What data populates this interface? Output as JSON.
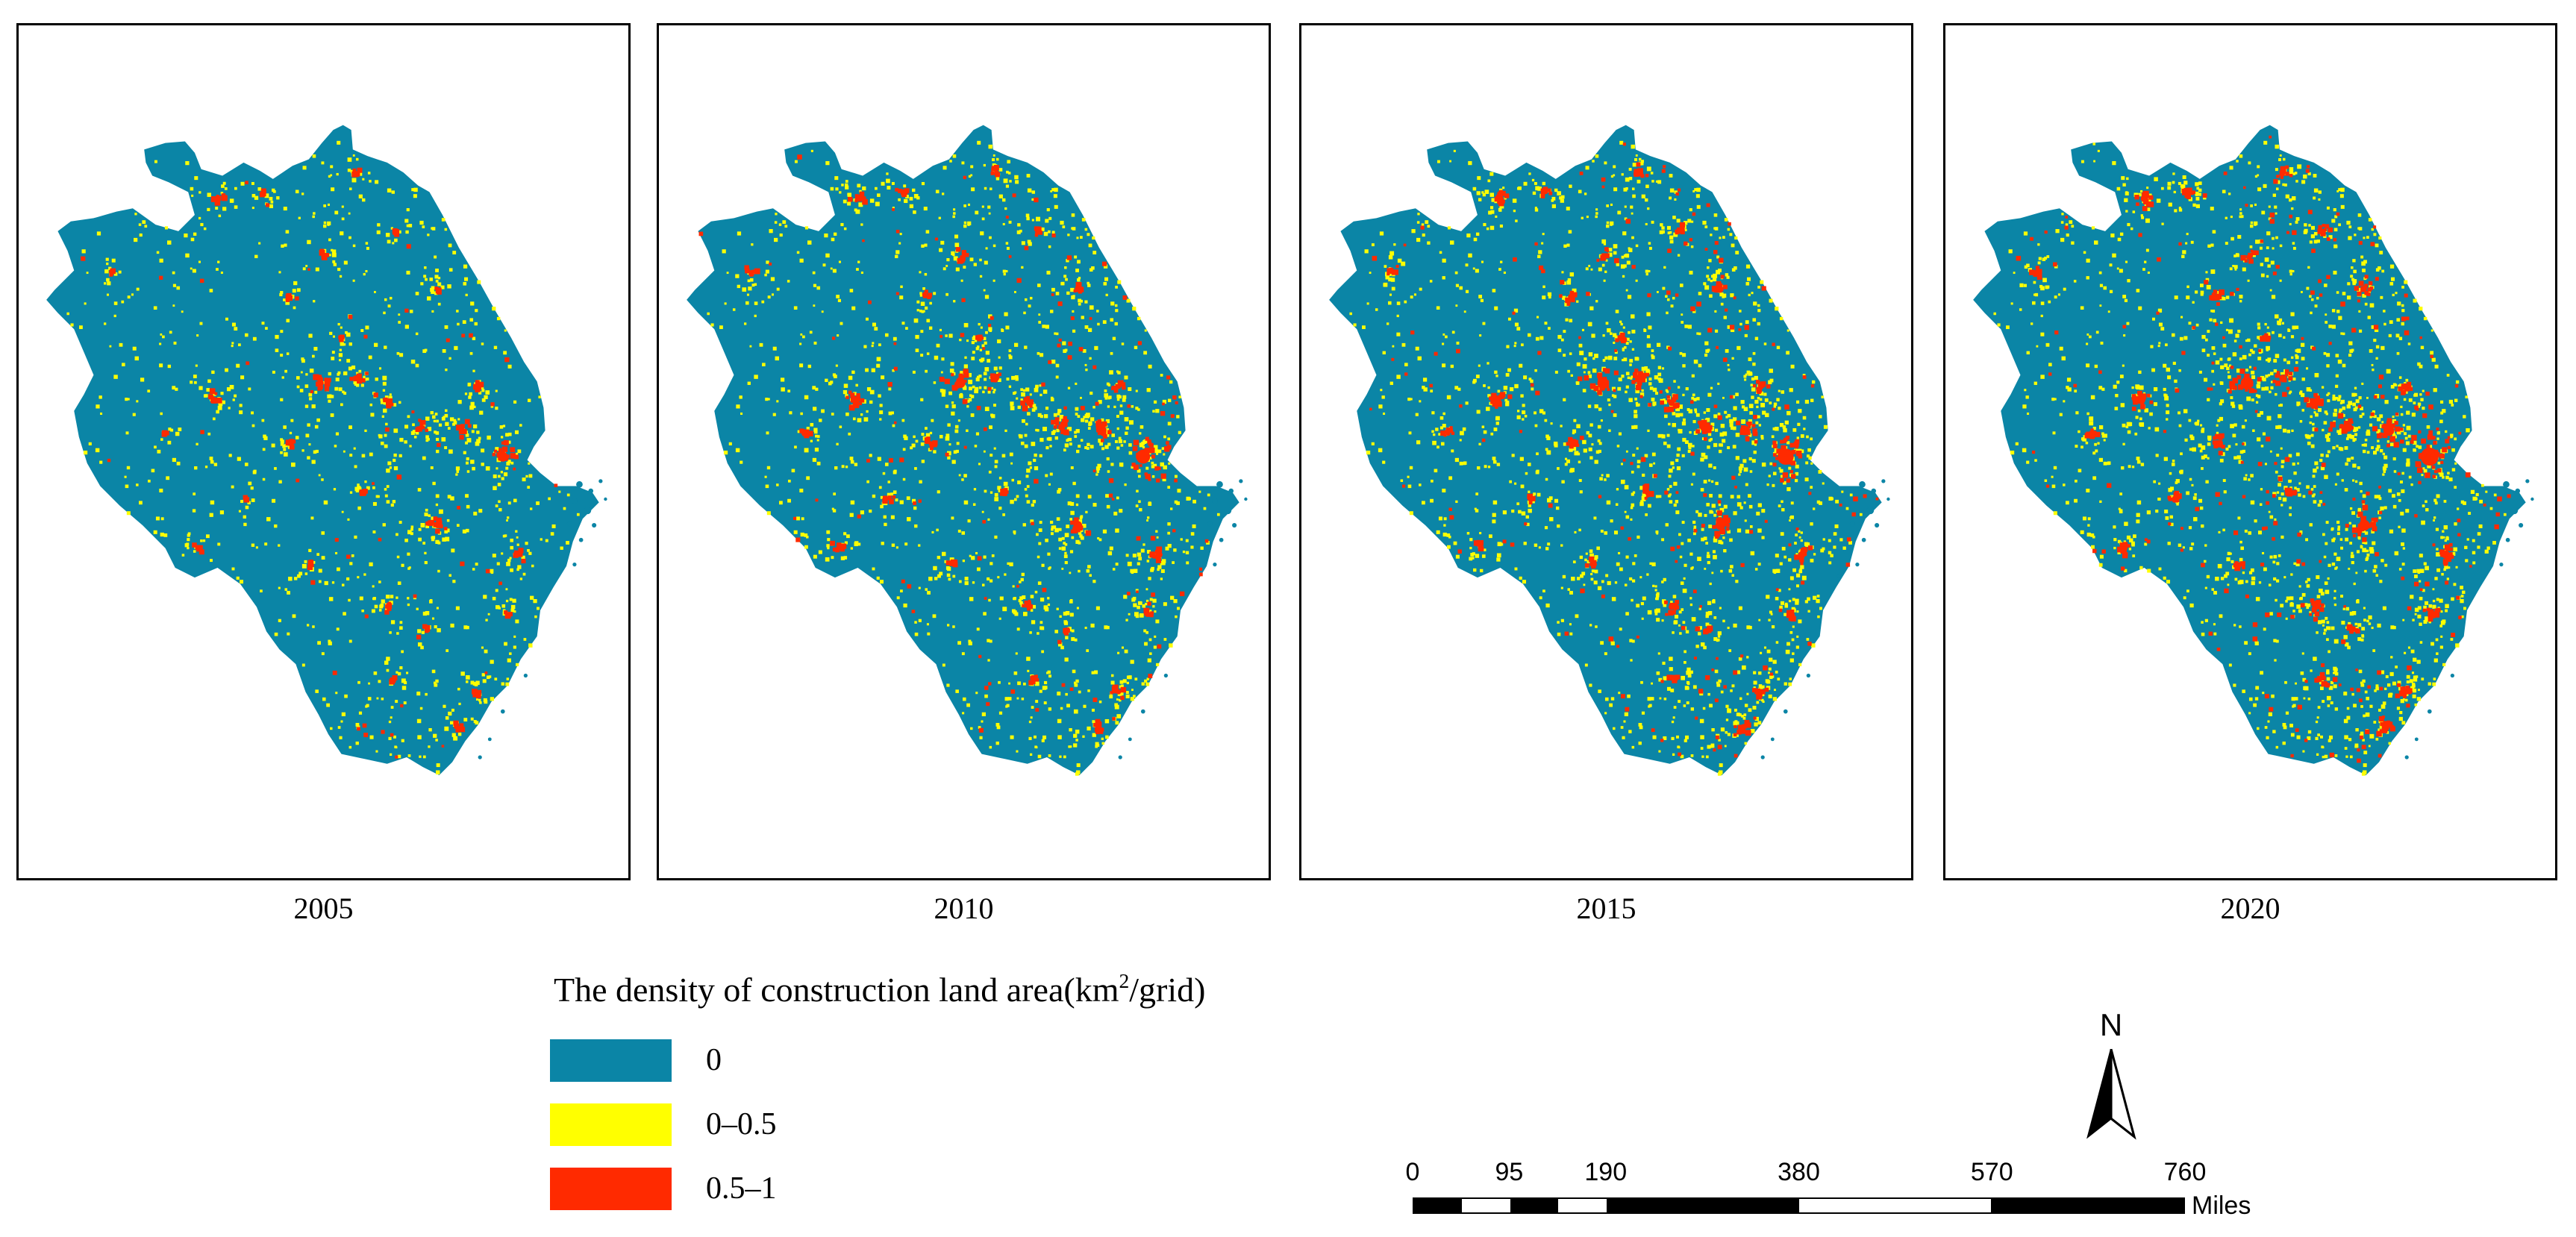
{
  "panels": [
    {
      "year": "2005"
    },
    {
      "year": "2010"
    },
    {
      "year": "2015"
    },
    {
      "year": "2020"
    }
  ],
  "legend": {
    "title_pre": "The density of construction land area(km",
    "title_sup": "2",
    "title_post": "/grid)",
    "items": [
      {
        "label": "0",
        "color": "#0b85a6"
      },
      {
        "label": "0–0.5",
        "color": "#ffff00"
      },
      {
        "label": "0.5–1",
        "color": "#ff2a00"
      }
    ]
  },
  "north_arrow": {
    "label": "N",
    "icon": "north-arrow-icon"
  },
  "scale_bar": {
    "ticks": [
      "0",
      "95",
      "190",
      "380",
      "570",
      "760"
    ],
    "unit": "Miles"
  }
}
